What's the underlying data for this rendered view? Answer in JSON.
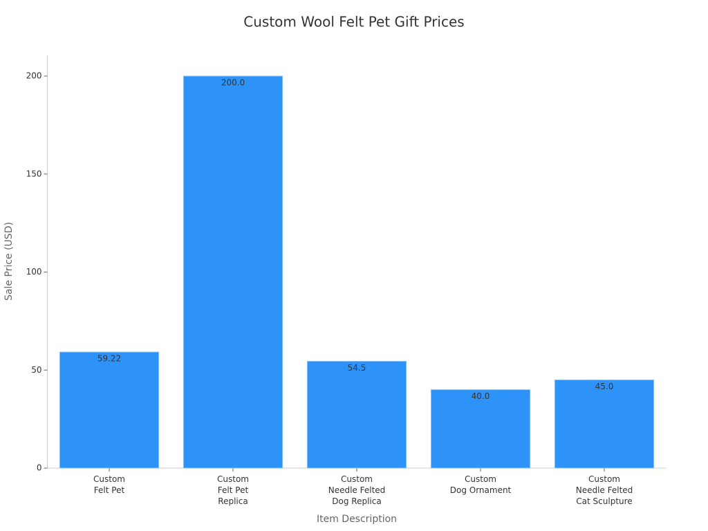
{
  "chart_data": {
    "type": "bar",
    "title": "Custom Wool Felt Pet Gift Prices",
    "x_label": "Item Description",
    "y_label": "Sale Price (USD)",
    "categories": [
      "Custom\nFelt Pet",
      "Custom\nFelt Pet\nReplica",
      "Custom\nNeedle Felted\nDog Replica",
      "Custom\nDog Ornament",
      "Custom\nNeedle Felted\nCat Sculpture"
    ],
    "values": [
      59.22,
      200,
      54.5,
      40,
      45
    ],
    "value_labels": [
      "59.22",
      "200.0",
      "54.5",
      "40.0",
      "45.0"
    ],
    "color": "#2e93f8",
    "ylim": [
      0,
      210
    ],
    "yticks": [
      0,
      50,
      100,
      150,
      200
    ],
    "grid": false
  }
}
